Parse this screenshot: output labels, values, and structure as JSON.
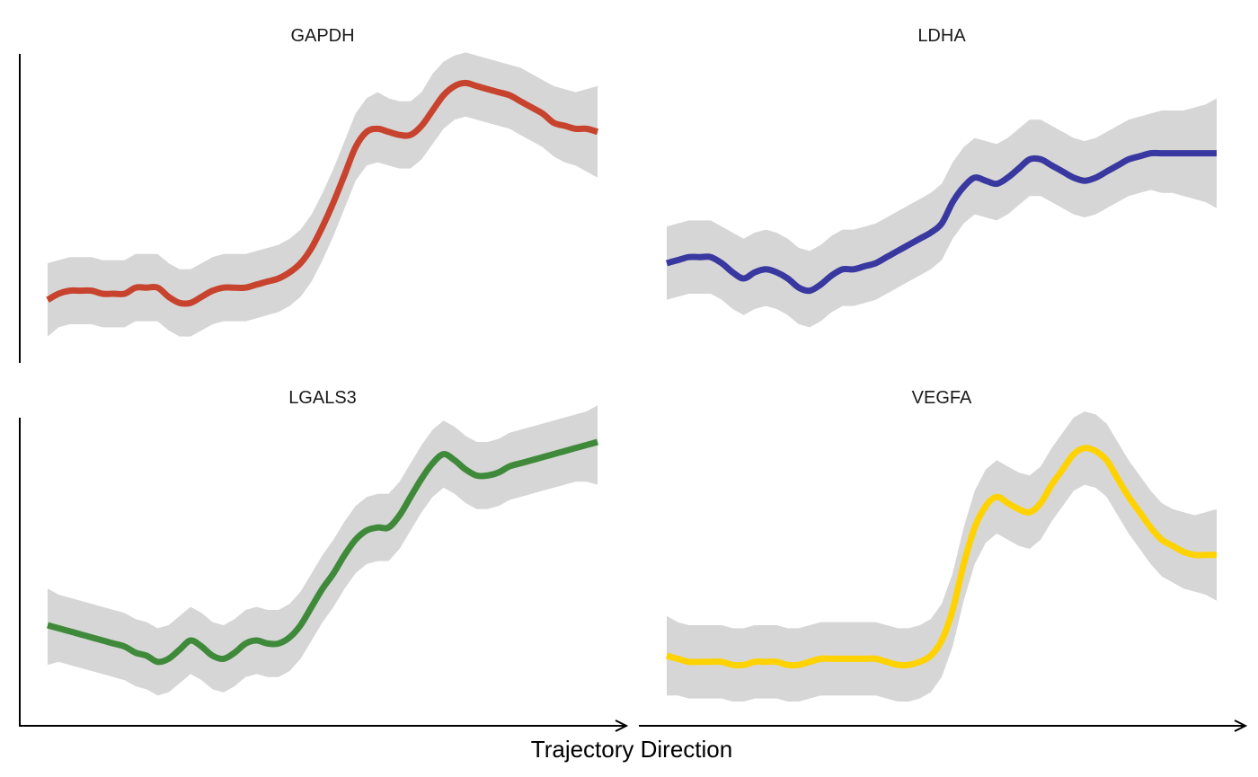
{
  "chart_data": {
    "type": "line",
    "xlabel": "Trajectory Direction",
    "x_axis_arrow": true,
    "panels": [
      {
        "title": "GAPDH",
        "color": "#c8432d",
        "band_color": "#d6d6d6",
        "ylim": [
          0,
          1
        ],
        "x": [
          0,
          0.02,
          0.04,
          0.06,
          0.08,
          0.1,
          0.12,
          0.14,
          0.16,
          0.18,
          0.2,
          0.22,
          0.24,
          0.26,
          0.28,
          0.3,
          0.32,
          0.34,
          0.36,
          0.38,
          0.4,
          0.42,
          0.44,
          0.46,
          0.48,
          0.5,
          0.52,
          0.54,
          0.56,
          0.58,
          0.6,
          0.62,
          0.64,
          0.66,
          0.68,
          0.7,
          0.72,
          0.74,
          0.76,
          0.78,
          0.8,
          0.82,
          0.84,
          0.86,
          0.88,
          0.9,
          0.92,
          0.94,
          0.96,
          0.98,
          1.0
        ],
        "y": [
          0.18,
          0.2,
          0.21,
          0.21,
          0.21,
          0.2,
          0.2,
          0.2,
          0.22,
          0.22,
          0.22,
          0.19,
          0.17,
          0.17,
          0.19,
          0.21,
          0.22,
          0.22,
          0.22,
          0.23,
          0.24,
          0.25,
          0.27,
          0.3,
          0.35,
          0.42,
          0.5,
          0.59,
          0.68,
          0.73,
          0.74,
          0.73,
          0.72,
          0.72,
          0.75,
          0.8,
          0.85,
          0.88,
          0.89,
          0.88,
          0.87,
          0.86,
          0.85,
          0.83,
          0.81,
          0.79,
          0.76,
          0.75,
          0.74,
          0.74,
          0.73
        ],
        "upper": [
          0.3,
          0.31,
          0.32,
          0.32,
          0.32,
          0.31,
          0.31,
          0.31,
          0.33,
          0.33,
          0.33,
          0.3,
          0.28,
          0.28,
          0.3,
          0.32,
          0.33,
          0.33,
          0.33,
          0.34,
          0.35,
          0.36,
          0.38,
          0.41,
          0.46,
          0.53,
          0.61,
          0.7,
          0.79,
          0.84,
          0.86,
          0.84,
          0.83,
          0.83,
          0.86,
          0.92,
          0.96,
          0.98,
          0.99,
          0.98,
          0.97,
          0.96,
          0.95,
          0.94,
          0.92,
          0.9,
          0.88,
          0.87,
          0.86,
          0.87,
          0.88
        ],
        "lower": [
          0.06,
          0.09,
          0.1,
          0.1,
          0.1,
          0.09,
          0.09,
          0.09,
          0.11,
          0.11,
          0.11,
          0.08,
          0.06,
          0.06,
          0.08,
          0.1,
          0.11,
          0.11,
          0.11,
          0.12,
          0.13,
          0.14,
          0.16,
          0.19,
          0.24,
          0.31,
          0.39,
          0.48,
          0.57,
          0.62,
          0.63,
          0.62,
          0.61,
          0.61,
          0.64,
          0.69,
          0.74,
          0.77,
          0.78,
          0.77,
          0.76,
          0.75,
          0.74,
          0.72,
          0.7,
          0.68,
          0.65,
          0.63,
          0.62,
          0.6,
          0.58
        ]
      },
      {
        "title": "LDHA",
        "color": "#3838a0",
        "band_color": "#d6d6d6",
        "ylim": [
          0,
          1
        ],
        "x": [
          0,
          0.02,
          0.04,
          0.06,
          0.08,
          0.1,
          0.12,
          0.14,
          0.16,
          0.18,
          0.2,
          0.22,
          0.24,
          0.26,
          0.28,
          0.3,
          0.32,
          0.34,
          0.36,
          0.38,
          0.4,
          0.42,
          0.44,
          0.46,
          0.48,
          0.5,
          0.52,
          0.54,
          0.56,
          0.58,
          0.6,
          0.62,
          0.64,
          0.66,
          0.68,
          0.7,
          0.72,
          0.74,
          0.76,
          0.78,
          0.8,
          0.82,
          0.84,
          0.86,
          0.88,
          0.9,
          0.92,
          0.94,
          0.96,
          0.98,
          1.0
        ],
        "y": [
          0.3,
          0.31,
          0.32,
          0.32,
          0.32,
          0.3,
          0.27,
          0.25,
          0.27,
          0.28,
          0.27,
          0.25,
          0.22,
          0.21,
          0.23,
          0.26,
          0.28,
          0.28,
          0.29,
          0.3,
          0.32,
          0.34,
          0.36,
          0.38,
          0.4,
          0.43,
          0.5,
          0.55,
          0.58,
          0.57,
          0.56,
          0.58,
          0.61,
          0.64,
          0.64,
          0.62,
          0.6,
          0.58,
          0.57,
          0.58,
          0.6,
          0.62,
          0.64,
          0.65,
          0.66,
          0.66,
          0.66,
          0.66,
          0.66,
          0.66,
          0.66
        ],
        "upper": [
          0.42,
          0.43,
          0.44,
          0.44,
          0.44,
          0.42,
          0.4,
          0.38,
          0.4,
          0.41,
          0.4,
          0.38,
          0.35,
          0.34,
          0.36,
          0.39,
          0.41,
          0.41,
          0.42,
          0.43,
          0.45,
          0.47,
          0.49,
          0.51,
          0.53,
          0.56,
          0.63,
          0.68,
          0.71,
          0.7,
          0.69,
          0.71,
          0.74,
          0.77,
          0.77,
          0.75,
          0.73,
          0.71,
          0.7,
          0.71,
          0.73,
          0.75,
          0.77,
          0.78,
          0.79,
          0.8,
          0.8,
          0.8,
          0.81,
          0.82,
          0.84
        ],
        "lower": [
          0.18,
          0.19,
          0.2,
          0.2,
          0.2,
          0.18,
          0.15,
          0.13,
          0.15,
          0.16,
          0.15,
          0.13,
          0.1,
          0.09,
          0.11,
          0.14,
          0.16,
          0.16,
          0.17,
          0.18,
          0.2,
          0.22,
          0.24,
          0.26,
          0.28,
          0.31,
          0.38,
          0.43,
          0.46,
          0.45,
          0.44,
          0.46,
          0.49,
          0.52,
          0.52,
          0.5,
          0.48,
          0.46,
          0.45,
          0.46,
          0.48,
          0.5,
          0.52,
          0.53,
          0.54,
          0.53,
          0.53,
          0.52,
          0.51,
          0.5,
          0.48
        ]
      },
      {
        "title": "LGALS3",
        "color": "#3f8a3a",
        "band_color": "#d6d6d6",
        "ylim": [
          0,
          1
        ],
        "x": [
          0,
          0.02,
          0.04,
          0.06,
          0.08,
          0.1,
          0.12,
          0.14,
          0.16,
          0.18,
          0.2,
          0.22,
          0.24,
          0.26,
          0.28,
          0.3,
          0.32,
          0.34,
          0.36,
          0.38,
          0.4,
          0.42,
          0.44,
          0.46,
          0.48,
          0.5,
          0.52,
          0.54,
          0.56,
          0.58,
          0.6,
          0.62,
          0.64,
          0.66,
          0.68,
          0.7,
          0.72,
          0.74,
          0.76,
          0.78,
          0.8,
          0.82,
          0.84,
          0.86,
          0.88,
          0.9,
          0.92,
          0.94,
          0.96,
          0.98,
          1.0
        ],
        "y": [
          0.3,
          0.29,
          0.28,
          0.27,
          0.26,
          0.25,
          0.24,
          0.23,
          0.21,
          0.2,
          0.18,
          0.19,
          0.22,
          0.25,
          0.23,
          0.2,
          0.19,
          0.21,
          0.24,
          0.25,
          0.24,
          0.24,
          0.26,
          0.3,
          0.36,
          0.42,
          0.47,
          0.53,
          0.58,
          0.61,
          0.62,
          0.62,
          0.66,
          0.72,
          0.78,
          0.83,
          0.86,
          0.84,
          0.81,
          0.79,
          0.79,
          0.8,
          0.82,
          0.83,
          0.84,
          0.85,
          0.86,
          0.87,
          0.88,
          0.89,
          0.9
        ],
        "upper": [
          0.42,
          0.4,
          0.39,
          0.38,
          0.37,
          0.36,
          0.35,
          0.34,
          0.32,
          0.31,
          0.29,
          0.3,
          0.33,
          0.36,
          0.34,
          0.31,
          0.3,
          0.32,
          0.35,
          0.36,
          0.35,
          0.35,
          0.37,
          0.41,
          0.47,
          0.53,
          0.58,
          0.64,
          0.69,
          0.72,
          0.73,
          0.73,
          0.77,
          0.83,
          0.89,
          0.94,
          0.97,
          0.95,
          0.92,
          0.9,
          0.9,
          0.91,
          0.93,
          0.94,
          0.95,
          0.96,
          0.97,
          0.98,
          0.99,
          1.0,
          1.02
        ],
        "lower": [
          0.17,
          0.18,
          0.17,
          0.16,
          0.15,
          0.14,
          0.13,
          0.12,
          0.1,
          0.09,
          0.07,
          0.08,
          0.11,
          0.14,
          0.12,
          0.09,
          0.08,
          0.1,
          0.13,
          0.14,
          0.13,
          0.13,
          0.15,
          0.19,
          0.25,
          0.31,
          0.36,
          0.42,
          0.47,
          0.5,
          0.51,
          0.51,
          0.55,
          0.61,
          0.67,
          0.72,
          0.75,
          0.73,
          0.7,
          0.68,
          0.68,
          0.69,
          0.71,
          0.72,
          0.73,
          0.74,
          0.75,
          0.76,
          0.77,
          0.77,
          0.76
        ]
      },
      {
        "title": "VEGFA",
        "color": "#ffd200",
        "band_color": "#d6d6d6",
        "ylim": [
          0,
          1
        ],
        "x": [
          0,
          0.02,
          0.04,
          0.06,
          0.08,
          0.1,
          0.12,
          0.14,
          0.16,
          0.18,
          0.2,
          0.22,
          0.24,
          0.26,
          0.28,
          0.3,
          0.32,
          0.34,
          0.36,
          0.38,
          0.4,
          0.42,
          0.44,
          0.46,
          0.48,
          0.5,
          0.52,
          0.54,
          0.56,
          0.58,
          0.6,
          0.62,
          0.64,
          0.66,
          0.68,
          0.7,
          0.72,
          0.74,
          0.76,
          0.78,
          0.8,
          0.82,
          0.84,
          0.86,
          0.88,
          0.9,
          0.92,
          0.94,
          0.96,
          0.98,
          1.0
        ],
        "y": [
          0.2,
          0.19,
          0.18,
          0.18,
          0.18,
          0.18,
          0.17,
          0.17,
          0.18,
          0.18,
          0.18,
          0.17,
          0.17,
          0.18,
          0.19,
          0.19,
          0.19,
          0.19,
          0.19,
          0.19,
          0.18,
          0.17,
          0.17,
          0.18,
          0.2,
          0.25,
          0.35,
          0.5,
          0.62,
          0.69,
          0.72,
          0.7,
          0.68,
          0.67,
          0.7,
          0.76,
          0.81,
          0.86,
          0.88,
          0.87,
          0.84,
          0.78,
          0.72,
          0.67,
          0.62,
          0.58,
          0.56,
          0.54,
          0.53,
          0.53,
          0.53
        ],
        "upper": [
          0.33,
          0.31,
          0.3,
          0.3,
          0.3,
          0.3,
          0.29,
          0.29,
          0.3,
          0.3,
          0.3,
          0.29,
          0.29,
          0.3,
          0.31,
          0.31,
          0.31,
          0.31,
          0.31,
          0.31,
          0.3,
          0.29,
          0.29,
          0.3,
          0.32,
          0.37,
          0.47,
          0.62,
          0.74,
          0.81,
          0.84,
          0.82,
          0.8,
          0.79,
          0.82,
          0.88,
          0.93,
          0.98,
          1.0,
          0.99,
          0.96,
          0.9,
          0.84,
          0.79,
          0.74,
          0.7,
          0.68,
          0.67,
          0.66,
          0.67,
          0.68
        ],
        "lower": [
          0.07,
          0.07,
          0.06,
          0.06,
          0.06,
          0.06,
          0.05,
          0.05,
          0.06,
          0.06,
          0.06,
          0.05,
          0.05,
          0.06,
          0.07,
          0.07,
          0.07,
          0.07,
          0.07,
          0.07,
          0.06,
          0.05,
          0.05,
          0.06,
          0.08,
          0.13,
          0.23,
          0.38,
          0.5,
          0.57,
          0.6,
          0.58,
          0.56,
          0.55,
          0.58,
          0.64,
          0.69,
          0.74,
          0.76,
          0.75,
          0.72,
          0.66,
          0.6,
          0.55,
          0.5,
          0.46,
          0.44,
          0.42,
          0.41,
          0.4,
          0.38
        ]
      }
    ]
  }
}
